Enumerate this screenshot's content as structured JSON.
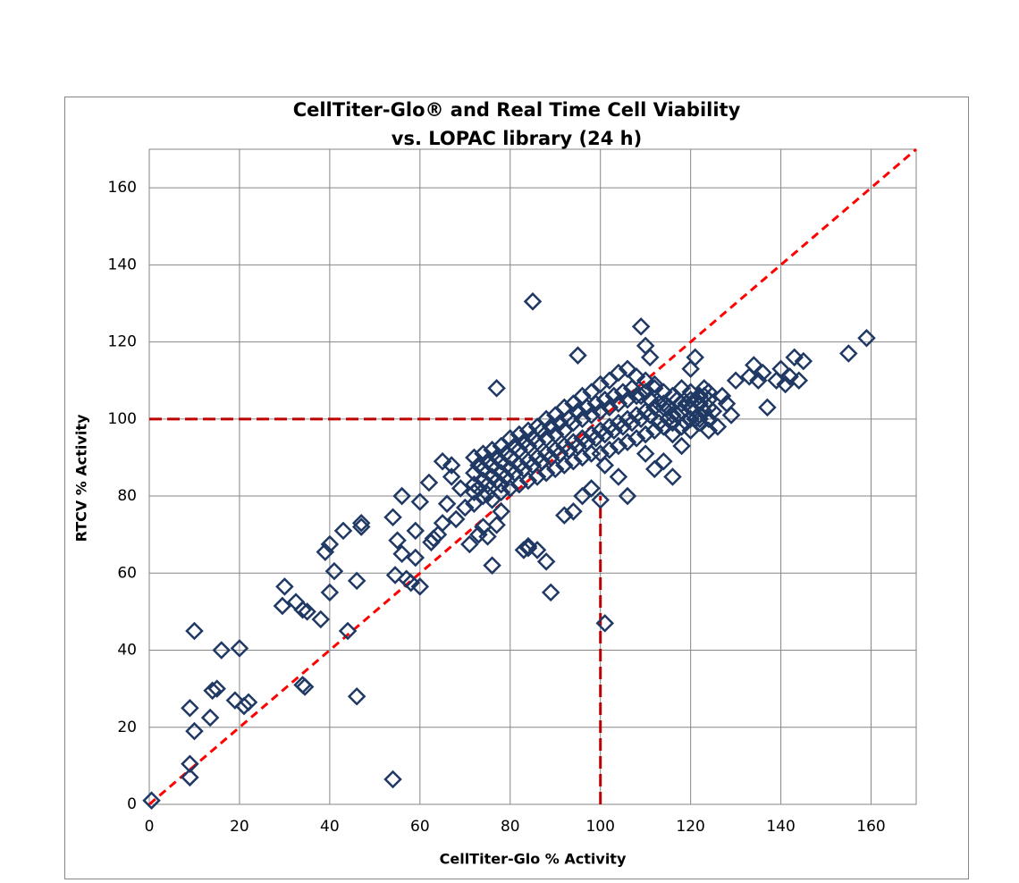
{
  "chart_data": {
    "type": "scatter",
    "title": [
      "CellTiter-Glo® and Real Time Cell Viability",
      "vs. LOPAC library (24 h)"
    ],
    "x_label": "CellTiter-Glo % Activity",
    "y_label": "RTCV % Activity",
    "xlim": [
      0,
      170
    ],
    "ylim": [
      0,
      170
    ],
    "xticks": [
      0,
      20,
      40,
      60,
      80,
      100,
      120,
      140,
      160
    ],
    "yticks": [
      0,
      20,
      40,
      60,
      80,
      100,
      120,
      140,
      160
    ],
    "grid": true,
    "lines": [
      {
        "x": [
          0,
          170
        ],
        "y": [
          0,
          170
        ],
        "color": "#ff0000"
      },
      {
        "x": [
          0,
          85
        ],
        "y": [
          100,
          100
        ],
        "color": "#c00000"
      },
      {
        "x": [
          100,
          100
        ],
        "y": [
          0,
          80
        ],
        "color": "#c00000"
      }
    ],
    "series": [
      {
        "color": "#1f3864",
        "x": [
          0.5,
          9,
          9,
          9,
          10,
          10,
          13.5,
          14,
          15,
          16,
          19,
          20,
          21,
          22,
          29.5,
          30,
          32.5,
          34,
          34.5,
          34,
          35,
          38,
          39,
          40,
          40,
          41,
          43,
          44,
          46,
          46,
          47,
          47,
          54,
          54,
          54.5,
          55,
          56,
          56,
          57,
          58,
          59,
          59,
          60,
          60,
          62,
          62.5,
          63,
          64,
          65,
          65,
          66,
          67,
          67,
          68,
          69,
          70,
          71,
          72,
          73,
          74,
          75,
          75,
          76,
          77,
          77,
          78,
          78,
          83,
          84,
          84,
          85,
          86,
          88,
          89,
          101,
          92,
          94,
          96,
          98,
          100,
          101,
          104,
          106,
          109,
          110,
          111,
          95,
          110,
          112,
          114,
          116,
          118,
          120,
          121,
          124,
          126,
          127,
          129,
          130,
          133,
          134,
          135,
          136,
          137,
          139,
          140,
          141,
          142,
          143,
          144,
          145,
          155,
          159,
          120,
          123,
          125,
          128,
          122,
          72,
          72,
          72,
          72,
          74,
          74,
          74,
          74,
          76,
          76,
          76,
          76,
          78,
          78,
          78,
          78,
          80,
          80,
          80,
          80,
          82,
          82,
          82,
          82,
          84,
          84,
          84,
          84,
          86,
          86,
          86,
          86,
          88,
          88,
          88,
          88,
          90,
          90,
          90,
          90,
          92,
          92,
          92,
          92,
          94,
          94,
          94,
          94,
          96,
          96,
          96,
          96,
          98,
          98,
          98,
          98,
          100,
          100,
          100,
          100,
          102,
          102,
          102,
          102,
          104,
          104,
          104,
          104,
          106,
          106,
          106,
          106,
          108,
          108,
          108,
          108,
          110,
          110,
          110,
          110,
          112,
          112,
          112,
          112,
          114,
          114,
          114,
          114,
          116,
          116,
          116,
          116,
          118,
          118,
          118,
          118,
          120,
          120,
          120,
          120,
          122,
          122,
          122,
          122,
          124,
          124,
          124,
          124,
          73,
          73,
          75,
          75,
          77,
          77,
          79,
          79,
          81,
          81,
          83,
          83,
          85,
          85,
          87,
          87,
          89,
          89,
          91,
          91,
          93,
          93,
          95,
          95,
          97,
          97,
          99,
          99,
          101,
          101,
          103,
          103,
          105,
          105,
          107,
          107,
          109,
          109,
          111,
          111,
          113,
          113,
          115,
          115,
          117,
          117,
          119,
          119,
          121,
          121,
          123,
          123
        ],
        "values": [
          1,
          7,
          10.5,
          25,
          19,
          45,
          22.5,
          29.5,
          30,
          40,
          27,
          40.5,
          25.5,
          26.5,
          51.5,
          56.5,
          52.5,
          31,
          30.5,
          50.5,
          50,
          48,
          65.5,
          67.5,
          55,
          60.5,
          71,
          45,
          28,
          58,
          72,
          73,
          74.5,
          6.5,
          59.5,
          68.5,
          80,
          65,
          58.5,
          57.5,
          64,
          71,
          78.5,
          56.5,
          83.5,
          68,
          69,
          70,
          73,
          89,
          78,
          85,
          88,
          74,
          82,
          77,
          67.5,
          81,
          70,
          72,
          80.5,
          69.5,
          62,
          72.5,
          108,
          76,
          83,
          66,
          66.5,
          67,
          130.5,
          66,
          63,
          55,
          47,
          75,
          76,
          80,
          82,
          79,
          88,
          85,
          80,
          124,
          119,
          116,
          116.5,
          91,
          87,
          89,
          85,
          93,
          113,
          116,
          97,
          98,
          106,
          101,
          110,
          111,
          114,
          110,
          112,
          103,
          110,
          113,
          109,
          111,
          116,
          110,
          115,
          117,
          121,
          105,
          108,
          102,
          104,
          100,
          78,
          83,
          86,
          90,
          80,
          84,
          87,
          91,
          79,
          85,
          88,
          92,
          81,
          86,
          89,
          93,
          82,
          87,
          90,
          95,
          83,
          88,
          92,
          96,
          84,
          89,
          93,
          97,
          85,
          90,
          94,
          98,
          86,
          91,
          95,
          100,
          87,
          92,
          96,
          101,
          88,
          93,
          97,
          103,
          89,
          94,
          99,
          104,
          90,
          95,
          100,
          106,
          91,
          96,
          101,
          107,
          91,
          97,
          102,
          109,
          92,
          98,
          103,
          110,
          93,
          99,
          104,
          112,
          94,
          100,
          105,
          113,
          95,
          101,
          106,
          111,
          96,
          102,
          107,
          110,
          97,
          103,
          108,
          109,
          98,
          103,
          107,
          104,
          96,
          101,
          106,
          99,
          98,
          104,
          108,
          102,
          97,
          103,
          107,
          100,
          99,
          104,
          106,
          101,
          100,
          103,
          107,
          105,
          82,
          88,
          83,
          89,
          84,
          90,
          85,
          91,
          86,
          93,
          87,
          94,
          88,
          95,
          89,
          97,
          90,
          98,
          91,
          99,
          92,
          100,
          93,
          102,
          94,
          103,
          95,
          104,
          96,
          105,
          97,
          106,
          98,
          107,
          99,
          108,
          100,
          106,
          101,
          105,
          99,
          104,
          100,
          103,
          101,
          105,
          99,
          104,
          100,
          105,
          102,
          106
        ]
      }
    ]
  }
}
